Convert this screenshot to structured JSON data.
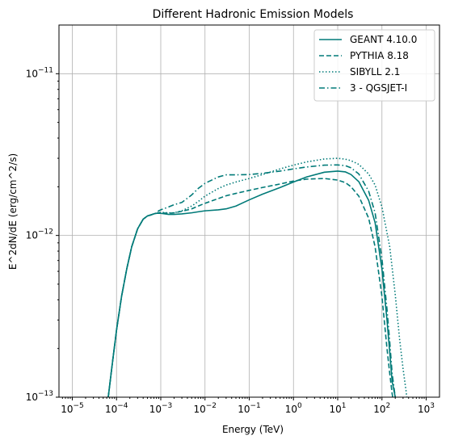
{
  "chart_data": {
    "type": "line",
    "title": "Different Hadronic Emission Models",
    "xlabel": "Energy (TeV)",
    "ylabel": "E^2dN/dE (erg/cm^2/s)",
    "xscale": "log",
    "yscale": "log",
    "xlim": [
      5e-06,
      2000
    ],
    "ylim": [
      1e-13,
      2e-11
    ],
    "grid": true,
    "legend_position": "top-right",
    "line_color": "#007a78",
    "x_ticks": [
      {
        "value": 1e-05,
        "base": "10",
        "exp": "−5"
      },
      {
        "value": 0.0001,
        "base": "10",
        "exp": "−4"
      },
      {
        "value": 0.001,
        "base": "10",
        "exp": "−3"
      },
      {
        "value": 0.01,
        "base": "10",
        "exp": "−2"
      },
      {
        "value": 0.1,
        "base": "10",
        "exp": "−1"
      },
      {
        "value": 1,
        "base": "10",
        "exp": "0"
      },
      {
        "value": 10,
        "base": "10",
        "exp": "1"
      },
      {
        "value": 100,
        "base": "10",
        "exp": "2"
      },
      {
        "value": 1000,
        "base": "10",
        "exp": "3"
      }
    ],
    "y_ticks": [
      {
        "value": 1e-13,
        "base": "10",
        "exp": "−13"
      },
      {
        "value": 1e-12,
        "base": "10",
        "exp": "−12"
      },
      {
        "value": 1e-11,
        "base": "10",
        "exp": "−11"
      }
    ],
    "series": [
      {
        "name": "GEANT 4.10.0",
        "dash": "solid",
        "x": [
          6.5e-05,
          8e-05,
          0.0001,
          0.00013,
          0.00017,
          0.00022,
          0.0003,
          0.0004,
          0.0005,
          0.0006,
          0.0007,
          0.0008,
          0.0009,
          0.001,
          0.0015,
          0.002,
          0.003,
          0.005,
          0.007,
          0.01,
          0.02,
          0.03,
          0.05,
          0.1,
          0.2,
          0.5,
          1,
          2,
          5,
          10,
          15,
          20,
          30,
          50,
          70,
          100,
          130,
          150,
          170,
          200,
          220
        ],
        "y": [
          1e-13,
          1.6e-13,
          2.6e-13,
          4.2e-13,
          6.2e-13,
          8.5e-13,
          1.1e-12,
          1.26e-12,
          1.32e-12,
          1.34e-12,
          1.36e-12,
          1.37e-12,
          1.37e-12,
          1.37e-12,
          1.35e-12,
          1.35e-12,
          1.36e-12,
          1.38e-12,
          1.4e-12,
          1.42e-12,
          1.44e-12,
          1.46e-12,
          1.52e-12,
          1.66e-12,
          1.8e-12,
          1.98e-12,
          2.14e-12,
          2.3e-12,
          2.46e-12,
          2.5e-12,
          2.47e-12,
          2.38e-12,
          2.15e-12,
          1.65e-12,
          1.2e-12,
          6.2e-13,
          3e-13,
          1.9e-13,
          1.25e-13,
          1e-13,
          8e-14
        ]
      },
      {
        "name": "PYTHIA 8.18",
        "dash": "dashed",
        "x": [
          6.5e-05,
          8e-05,
          0.0001,
          0.00013,
          0.00017,
          0.00022,
          0.0003,
          0.0004,
          0.0005,
          0.0006,
          0.0007,
          0.0008,
          0.0009,
          0.001,
          0.0015,
          0.002,
          0.003,
          0.005,
          0.007,
          0.01,
          0.02,
          0.03,
          0.05,
          0.1,
          0.2,
          0.5,
          1,
          2,
          5,
          10,
          15,
          20,
          30,
          50,
          70,
          100,
          130,
          150,
          170,
          200
        ],
        "y": [
          1e-13,
          1.6e-13,
          2.6e-13,
          4.2e-13,
          6.2e-13,
          8.5e-13,
          1.1e-12,
          1.26e-12,
          1.32e-12,
          1.34e-12,
          1.36e-12,
          1.37e-12,
          1.38e-12,
          1.38e-12,
          1.37e-12,
          1.38e-12,
          1.41e-12,
          1.46e-12,
          1.52e-12,
          1.58e-12,
          1.69e-12,
          1.76e-12,
          1.82e-12,
          1.9e-12,
          1.98e-12,
          2.08e-12,
          2.17e-12,
          2.23e-12,
          2.25e-12,
          2.2e-12,
          2.12e-12,
          2e-12,
          1.75e-12,
          1.28e-12,
          8.5e-13,
          4.2e-13,
          2e-13,
          1.4e-13,
          1.05e-13,
          8e-14
        ]
      },
      {
        "name": "SIBYLL 2.1",
        "dash": "dotted",
        "x": [
          6.5e-05,
          8e-05,
          0.0001,
          0.00013,
          0.00017,
          0.00022,
          0.0003,
          0.0004,
          0.0005,
          0.0006,
          0.0007,
          0.0008,
          0.0009,
          0.001,
          0.0015,
          0.002,
          0.003,
          0.005,
          0.007,
          0.01,
          0.02,
          0.03,
          0.05,
          0.1,
          0.2,
          0.5,
          1,
          2,
          5,
          10,
          15,
          20,
          30,
          50,
          70,
          100,
          150,
          200,
          250,
          300,
          350,
          400
        ],
        "y": [
          1e-13,
          1.6e-13,
          2.6e-13,
          4.2e-13,
          6.2e-13,
          8.5e-13,
          1.1e-12,
          1.26e-12,
          1.32e-12,
          1.34e-12,
          1.36e-12,
          1.37e-12,
          1.38e-12,
          1.39e-12,
          1.38e-12,
          1.38e-12,
          1.42e-12,
          1.52e-12,
          1.62e-12,
          1.75e-12,
          1.95e-12,
          2.05e-12,
          2.14e-12,
          2.25e-12,
          2.38e-12,
          2.58e-12,
          2.72e-12,
          2.85e-12,
          2.97e-12,
          3e-12,
          2.96e-12,
          2.9e-12,
          2.75e-12,
          2.4e-12,
          2.05e-12,
          1.5e-12,
          8.5e-13,
          4.3e-13,
          2.3e-13,
          1.5e-13,
          1.1e-13,
          8e-14
        ]
      },
      {
        "name": "3 - QGSJET-I",
        "dash": "dashdot",
        "x": [
          6.5e-05,
          8e-05,
          0.0001,
          0.00013,
          0.00017,
          0.00022,
          0.0003,
          0.0004,
          0.0005,
          0.0006,
          0.0007,
          0.0008,
          0.0009,
          0.001,
          0.0015,
          0.002,
          0.003,
          0.005,
          0.007,
          0.01,
          0.02,
          0.03,
          0.05,
          0.1,
          0.2,
          0.5,
          1,
          2,
          5,
          10,
          15,
          20,
          30,
          50,
          70,
          100,
          130,
          150,
          170,
          200,
          220
        ],
        "y": [
          1e-13,
          1.6e-13,
          2.6e-13,
          4.2e-13,
          6.2e-13,
          8.5e-13,
          1.1e-12,
          1.26e-12,
          1.32e-12,
          1.34e-12,
          1.36e-12,
          1.38e-12,
          1.42e-12,
          1.44e-12,
          1.5e-12,
          1.55e-12,
          1.6e-12,
          1.78e-12,
          1.95e-12,
          2.1e-12,
          2.3e-12,
          2.37e-12,
          2.37e-12,
          2.38e-12,
          2.42e-12,
          2.5e-12,
          2.58e-12,
          2.65e-12,
          2.72e-12,
          2.73e-12,
          2.7e-12,
          2.62e-12,
          2.4e-12,
          1.88e-12,
          1.38e-12,
          7.2e-13,
          3.5e-13,
          2.2e-13,
          1.4e-13,
          1e-13,
          8e-14
        ]
      }
    ]
  }
}
